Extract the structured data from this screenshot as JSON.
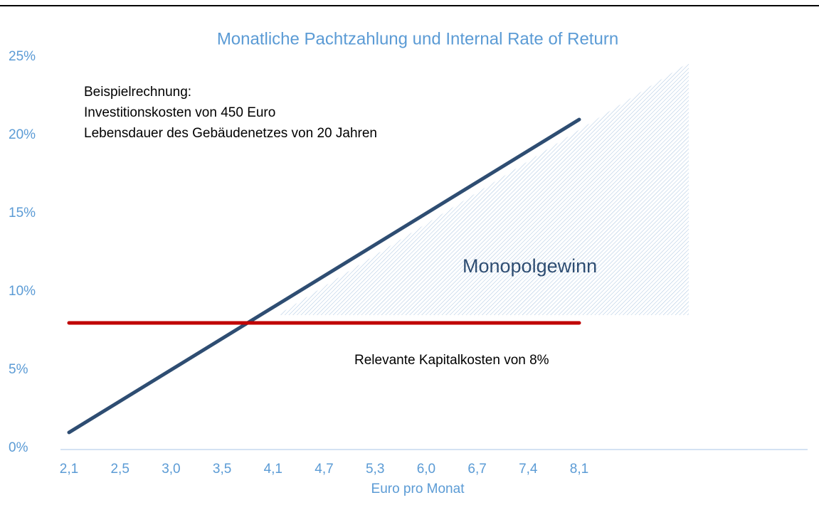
{
  "chart_data": {
    "type": "line",
    "title": "Monatliche Pachtzahlung und Internal Rate of Return",
    "x_label": "Euro pro Monat",
    "categories": [
      "2,1",
      "2,5",
      "3,0",
      "3,5",
      "4,1",
      "4,7",
      "5,3",
      "6,0",
      "6,7",
      "7,4",
      "8,1"
    ],
    "series": [
      {
        "color": "#2e4d72",
        "values": [
          1,
          3,
          5,
          7,
          9,
          11,
          13,
          15,
          17,
          19,
          21
        ]
      },
      {
        "color": "#c00000",
        "values": [
          8,
          8,
          8,
          8,
          8,
          8,
          8,
          8,
          8,
          8,
          8
        ]
      }
    ],
    "ylim": [
      0,
      25
    ],
    "yticks": [
      {
        "value": 0,
        "label": "0%"
      },
      {
        "value": 5,
        "label": "5%"
      },
      {
        "value": 10,
        "label": "10%"
      },
      {
        "value": 15,
        "label": "15%"
      },
      {
        "value": 20,
        "label": "20%"
      },
      {
        "value": 25,
        "label": "25%"
      }
    ],
    "grid": false,
    "annotations": [
      "Beispielrechnung:",
      "Investitionskosten von 450 Euro",
      "Lebensdauer des Gebäudenetzes von 20 Jahren",
      "Monopolgewinn",
      "Relevante Kapitalkosten von 8%"
    ]
  }
}
